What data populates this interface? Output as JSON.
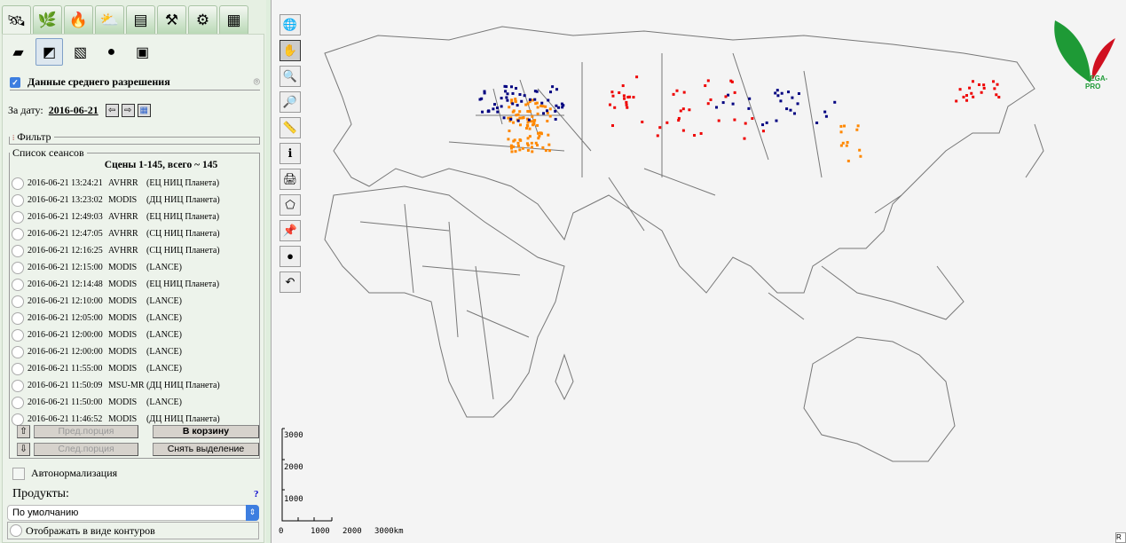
{
  "tabs": [
    {
      "icon": "satellite-icon"
    },
    {
      "icon": "leaves-icon"
    },
    {
      "icon": "fire-icon"
    },
    {
      "icon": "weather-icon"
    },
    {
      "icon": "layers-icon"
    },
    {
      "icon": "tools-icon"
    },
    {
      "icon": "gear-icon"
    },
    {
      "icon": "table-icon"
    }
  ],
  "subtabs": [
    {
      "icon": "scene-icon"
    },
    {
      "icon": "swath-icon"
    },
    {
      "icon": "mosaic-icon"
    },
    {
      "icon": "globe-icon"
    },
    {
      "icon": "product-map-icon"
    }
  ],
  "section_title": "Данные среднего разрешения",
  "date_label": "За дату:",
  "date_value": "2016-06-21",
  "filter_label": "Фильтр",
  "sessions_label": "Список сеансов",
  "scenes_summary": "Сцены 1-145, всего ~ 145",
  "sessions": [
    {
      "time": "2016-06-21 13:24:21",
      "sensor": "AVHRR",
      "source": "(ЕЦ НИЦ Планета)"
    },
    {
      "time": "2016-06-21 13:23:02",
      "sensor": "MODIS",
      "source": "(ДЦ НИЦ Планета)"
    },
    {
      "time": "2016-06-21 12:49:03",
      "sensor": "AVHRR",
      "source": "(ЕЦ НИЦ Планета)"
    },
    {
      "time": "2016-06-21 12:47:05",
      "sensor": "AVHRR",
      "source": "(СЦ НИЦ Планета)"
    },
    {
      "time": "2016-06-21 12:16:25",
      "sensor": "AVHRR",
      "source": "(СЦ НИЦ Планета)"
    },
    {
      "time": "2016-06-21 12:15:00",
      "sensor": "MODIS",
      "source": "(LANCE)"
    },
    {
      "time": "2016-06-21 12:14:48",
      "sensor": "MODIS",
      "source": "(ЕЦ НИЦ Планета)"
    },
    {
      "time": "2016-06-21 12:10:00",
      "sensor": "MODIS",
      "source": "(LANCE)"
    },
    {
      "time": "2016-06-21 12:05:00",
      "sensor": "MODIS",
      "source": "(LANCE)"
    },
    {
      "time": "2016-06-21 12:00:00",
      "sensor": "MODIS",
      "source": "(LANCE)"
    },
    {
      "time": "2016-06-21 12:00:00",
      "sensor": "MODIS",
      "source": "(LANCE)"
    },
    {
      "time": "2016-06-21 11:55:00",
      "sensor": "MODIS",
      "source": "(LANCE)"
    },
    {
      "time": "2016-06-21 11:50:09",
      "sensor": "MSU-MR",
      "source": "(ДЦ НИЦ Планета)"
    },
    {
      "time": "2016-06-21 11:50:00",
      "sensor": "MODIS",
      "source": "(LANCE)"
    },
    {
      "time": "2016-06-21 11:46:52",
      "sensor": "MODIS",
      "source": "(ДЦ НИЦ Планета)"
    }
  ],
  "buttons": {
    "prev": "Пред.порция",
    "next": "След.порция",
    "basket": "В корзину",
    "deselect": "Снять выделение",
    "up": "⇧",
    "down": "⇩"
  },
  "autonorm_label": "Автонормализация",
  "products_label": "Продукты:",
  "help": "?",
  "products_select": "По умолчанию",
  "contours_label": "Отображать в виде контуров",
  "map_tools": [
    {
      "name": "zoom-to-globe-icon",
      "glyph": "🌐"
    },
    {
      "name": "pan-hand-icon",
      "glyph": "✋"
    },
    {
      "name": "zoom-box-icon",
      "glyph": "🔍"
    },
    {
      "name": "zoom-out-icon",
      "glyph": "🔎"
    },
    {
      "name": "ruler-icon",
      "glyph": "📏"
    },
    {
      "name": "info-icon",
      "glyph": "ℹ"
    },
    {
      "name": "print-icon",
      "glyph": "🖨"
    },
    {
      "name": "polygon-select-icon",
      "glyph": "⬠"
    },
    {
      "name": "pin-add-icon",
      "glyph": "📌"
    },
    {
      "name": "google-earth-icon",
      "glyph": "●"
    },
    {
      "name": "undo-icon",
      "glyph": "↶"
    }
  ],
  "logo_text": "VEGA-PRO",
  "scale": {
    "vertical": [
      "3000",
      "2000",
      "1000"
    ],
    "horizontal": [
      "0",
      "1000",
      "2000",
      "3000km"
    ]
  },
  "colors": {
    "fire_orange": "#ff8800",
    "fire_red": "#ee0000",
    "burn_blue": "#000080",
    "accent": "#3d7ee0"
  }
}
